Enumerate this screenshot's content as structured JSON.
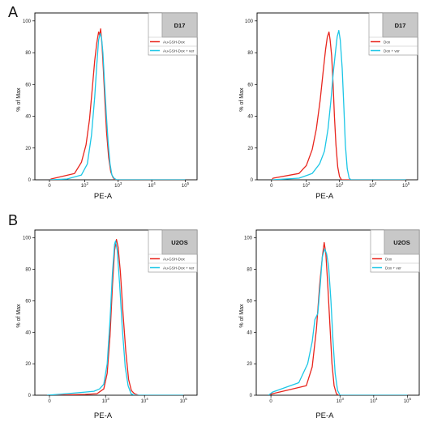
{
  "panels": {
    "A": {
      "label": "A"
    },
    "B": {
      "label": "B"
    }
  },
  "colors": {
    "red": "#e8261e",
    "cyan": "#1cc6e6",
    "legend_header": "#c8c8c8"
  },
  "chart_data": [
    {
      "type": "line",
      "panel": "A",
      "sample": "D17",
      "xlabel": "PE-A",
      "ylabel": "% of Max",
      "xscale": "log",
      "xticks": [
        "0",
        "10^2",
        "10^3",
        "10^4",
        "10^5"
      ],
      "yticks": [
        "0",
        "20",
        "40",
        "60",
        "80",
        "100"
      ],
      "ylim": [
        0,
        105
      ],
      "legend_position": "top-right",
      "series": [
        {
          "name": "Au-GSH-Dox",
          "color": "#e8261e",
          "points": [
            [
              -30,
              0
            ],
            [
              0,
              0.5
            ],
            [
              50,
              4
            ],
            [
              80,
              11
            ],
            [
              110,
              22
            ],
            [
              140,
              38
            ],
            [
              170,
              58
            ],
            [
              200,
              75
            ],
            [
              230,
              86
            ],
            [
              260,
              93
            ],
            [
              280,
              91
            ],
            [
              300,
              95
            ],
            [
              330,
              85
            ],
            [
              360,
              70
            ],
            [
              400,
              50
            ],
            [
              450,
              30
            ],
            [
              520,
              14
            ],
            [
              600,
              5
            ],
            [
              700,
              1.5
            ],
            [
              800,
              0
            ],
            [
              100000,
              0
            ]
          ]
        },
        {
          "name": "Au-GSH-Dox + ver",
          "color": "#1cc6e6",
          "points": [
            [
              -30,
              0
            ],
            [
              30,
              0.5
            ],
            [
              80,
              3
            ],
            [
              120,
              10
            ],
            [
              160,
              28
            ],
            [
              200,
              52
            ],
            [
              230,
              72
            ],
            [
              260,
              88
            ],
            [
              290,
              92
            ],
            [
              320,
              89
            ],
            [
              350,
              80
            ],
            [
              390,
              62
            ],
            [
              440,
              42
            ],
            [
              500,
              24
            ],
            [
              570,
              10
            ],
            [
              650,
              3
            ],
            [
              750,
              1
            ],
            [
              900,
              0
            ],
            [
              100000,
              0
            ]
          ]
        }
      ]
    },
    {
      "type": "line",
      "panel": "A",
      "sample": "D17",
      "xlabel": "PE-A",
      "ylabel": "% of Max",
      "xscale": "log",
      "xticks": [
        "0",
        "10^2",
        "10^3",
        "10^4",
        "10^5"
      ],
      "yticks": [
        "0",
        "20",
        "40",
        "60",
        "80",
        "100"
      ],
      "ylim": [
        0,
        105
      ],
      "legend_position": "top-right",
      "series": [
        {
          "name": "Dox",
          "color": "#e8261e",
          "points": [
            [
              -30,
              0
            ],
            [
              0,
              1
            ],
            [
              60,
              4
            ],
            [
              100,
              9
            ],
            [
              150,
              19
            ],
            [
              200,
              32
            ],
            [
              260,
              50
            ],
            [
              320,
              68
            ],
            [
              380,
              82
            ],
            [
              430,
              90
            ],
            [
              480,
              93
            ],
            [
              520,
              88
            ],
            [
              580,
              78
            ],
            [
              640,
              60
            ],
            [
              700,
              40
            ],
            [
              780,
              22
            ],
            [
              880,
              8
            ],
            [
              1000,
              2
            ],
            [
              1150,
              0
            ],
            [
              100000,
              0
            ]
          ]
        },
        {
          "name": "Dox + ver",
          "color": "#1cc6e6",
          "points": [
            [
              -30,
              0
            ],
            [
              60,
              1
            ],
            [
              150,
              4
            ],
            [
              250,
              10
            ],
            [
              350,
              18
            ],
            [
              450,
              32
            ],
            [
              550,
              50
            ],
            [
              650,
              68
            ],
            [
              750,
              80
            ],
            [
              850,
              90
            ],
            [
              950,
              94
            ],
            [
              1050,
              88
            ],
            [
              1200,
              70
            ],
            [
              1350,
              45
            ],
            [
              1500,
              22
            ],
            [
              1700,
              7
            ],
            [
              1950,
              1
            ],
            [
              2200,
              0
            ],
            [
              100000,
              0
            ]
          ]
        }
      ]
    },
    {
      "type": "line",
      "panel": "B",
      "sample": "U2OS",
      "xlabel": "PE-A",
      "ylabel": "% of Max",
      "xscale": "log",
      "xticks": [
        "0",
        "10^3",
        "10^4",
        "10^5"
      ],
      "yticks": [
        "0",
        "20",
        "40",
        "60",
        "80",
        "100"
      ],
      "ylim": [
        0,
        105
      ],
      "legend_position": "top-right",
      "series": [
        {
          "name": "Au-GSH-Dox",
          "color": "#e8261e",
          "points": [
            [
              -100,
              0
            ],
            [
              300,
              0.5
            ],
            [
              600,
              1
            ],
            [
              900,
              4
            ],
            [
              1100,
              14
            ],
            [
              1300,
              38
            ],
            [
              1500,
              70
            ],
            [
              1700,
              92
            ],
            [
              1900,
              99
            ],
            [
              2100,
              94
            ],
            [
              2400,
              78
            ],
            [
              2800,
              52
            ],
            [
              3300,
              28
            ],
            [
              3900,
              10
            ],
            [
              4600,
              3
            ],
            [
              5500,
              1
            ],
            [
              7000,
              0
            ],
            [
              100000,
              0
            ]
          ]
        },
        {
          "name": "Au-GSH-Dox + ver",
          "color": "#1cc6e6",
          "points": [
            [
              -100,
              0
            ],
            [
              100,
              1
            ],
            [
              300,
              2
            ],
            [
              500,
              2.5
            ],
            [
              700,
              4
            ],
            [
              900,
              7
            ],
            [
              1100,
              20
            ],
            [
              1300,
              48
            ],
            [
              1500,
              78
            ],
            [
              1700,
              96
            ],
            [
              1800,
              98
            ],
            [
              2000,
              92
            ],
            [
              2300,
              70
            ],
            [
              2700,
              42
            ],
            [
              3200,
              18
            ],
            [
              3800,
              6
            ],
            [
              4500,
              1
            ],
            [
              5500,
              0
            ],
            [
              100000,
              0
            ]
          ]
        }
      ]
    },
    {
      "type": "line",
      "panel": "B",
      "sample": "U2OS",
      "xlabel": "PE-A",
      "ylabel": "% of Max",
      "xscale": "log",
      "xticks": [
        "0",
        "10^3",
        "10^4",
        "10^5"
      ],
      "yticks": [
        "0",
        "20",
        "40",
        "60",
        "80",
        "100"
      ],
      "ylim": [
        0,
        105
      ],
      "legend_position": "top-right",
      "series": [
        {
          "name": "Dox",
          "color": "#e8261e",
          "points": [
            [
              -100,
              0
            ],
            [
              0,
              1
            ],
            [
              100,
              6
            ],
            [
              150,
              18
            ],
            [
              200,
              42
            ],
            [
              250,
              70
            ],
            [
              300,
              88
            ],
            [
              340,
              97
            ],
            [
              380,
              90
            ],
            [
              430,
              72
            ],
            [
              500,
              45
            ],
            [
              580,
              20
            ],
            [
              670,
              6
            ],
            [
              780,
              1
            ],
            [
              900,
              0
            ],
            [
              100000,
              0
            ]
          ]
        },
        {
          "name": "Dox + ver",
          "color": "#1cc6e6",
          "points": [
            [
              -100,
              0
            ],
            [
              0,
              2
            ],
            [
              60,
              8
            ],
            [
              110,
              20
            ],
            [
              150,
              34
            ],
            [
              180,
              48
            ],
            [
              220,
              52
            ],
            [
              260,
              70
            ],
            [
              300,
              88
            ],
            [
              350,
              93
            ],
            [
              400,
              90
            ],
            [
              460,
              82
            ],
            [
              540,
              60
            ],
            [
              620,
              35
            ],
            [
              720,
              14
            ],
            [
              850,
              3
            ],
            [
              1000,
              0
            ],
            [
              100000,
              0
            ]
          ]
        }
      ]
    }
  ]
}
